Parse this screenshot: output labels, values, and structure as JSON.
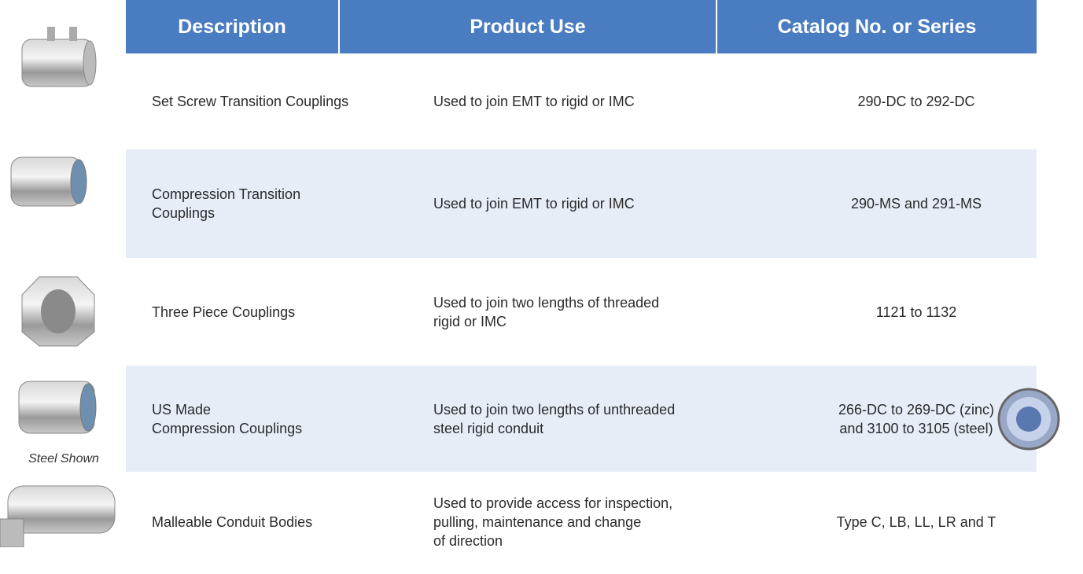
{
  "table": {
    "header": [
      "Description",
      "Product Use",
      "Catalog No. or Series"
    ],
    "rows": [
      {
        "description": [
          "Set Screw Transition Couplings"
        ],
        "product_use": [
          "Used to join EMT to rigid or IMC"
        ],
        "catalog": [
          "290-DC to 292-DC"
        ]
      },
      {
        "description": [
          "Compression Transition",
          "Couplings"
        ],
        "product_use": [
          "Used to join EMT to rigid or IMC"
        ],
        "catalog": [
          "290-MS and 291-MS"
        ]
      },
      {
        "description": [
          "Three Piece Couplings"
        ],
        "product_use": [
          "Used to join two lengths of threaded",
          "rigid or IMC"
        ],
        "catalog": [
          "1121 to 1132"
        ]
      },
      {
        "description": [
          "US Made",
          "Compression Couplings"
        ],
        "product_use": [
          "Used to join two lengths of unthreaded",
          "steel rigid conduit"
        ],
        "catalog": [
          "266-DC to 269-DC (zinc)",
          "and 3100 to 3105 (steel)"
        ]
      },
      {
        "description": [
          "Malleable Conduit Bodies"
        ],
        "product_use": [
          "Used to provide access for inspection,",
          "pulling, maintenance and change",
          "of direction"
        ],
        "catalog": [
          "Type C, LB, LL, LR and T"
        ]
      }
    ],
    "image_caption": "Steel Shown"
  }
}
